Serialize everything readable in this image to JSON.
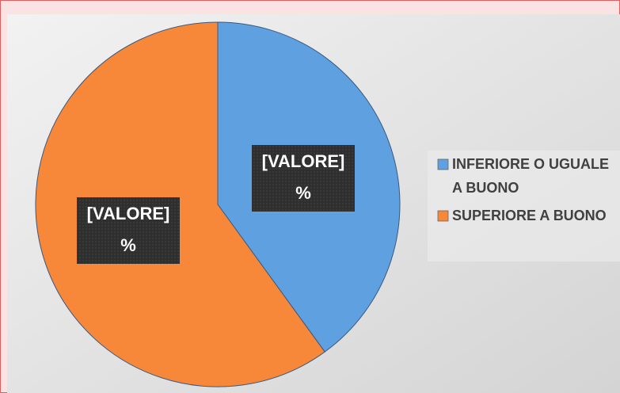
{
  "chart_data": {
    "type": "pie",
    "categories": [
      "INFERIORE O UGUALE A BUONO",
      "SUPERIORE A BUONO"
    ],
    "values": [
      40,
      60
    ],
    "value_labels": [
      [
        "[VALORE]",
        "%"
      ],
      [
        "[VALORE]",
        "%"
      ]
    ],
    "colors": [
      "#5fa0e0",
      "#f7883a"
    ],
    "legend": "right"
  }
}
